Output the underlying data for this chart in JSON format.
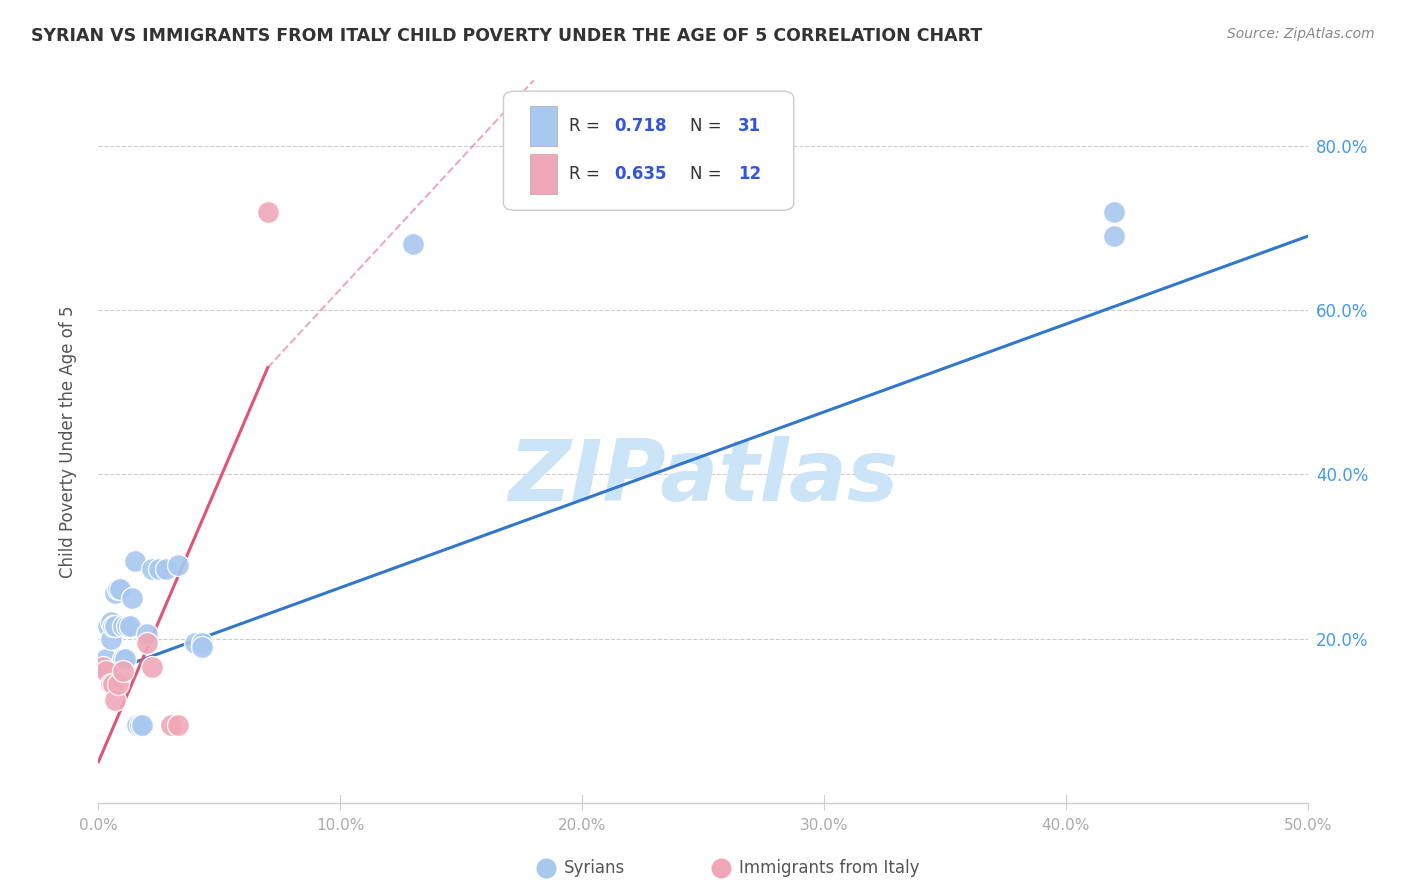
{
  "title": "SYRIAN VS IMMIGRANTS FROM ITALY CHILD POVERTY UNDER THE AGE OF 5 CORRELATION CHART",
  "source": "Source: ZipAtlas.com",
  "ylabel": "Child Poverty Under the Age of 5",
  "xlim": [
    0.0,
    0.5
  ],
  "ylim": [
    0.0,
    0.88
  ],
  "xticks": [
    0.0,
    0.1,
    0.2,
    0.3,
    0.4,
    0.5
  ],
  "yticks": [
    0.0,
    0.2,
    0.4,
    0.6,
    0.8
  ],
  "xtick_labels": [
    "0.0%",
    "10.0%",
    "20.0%",
    "30.0%",
    "40.0%",
    "50.0%"
  ],
  "ytick_labels": [
    "",
    "20.0%",
    "40.0%",
    "60.0%",
    "80.0%"
  ],
  "background_color": "#ffffff",
  "watermark": "ZIPatlas",
  "watermark_color": "#cce4f7",
  "color_syrians": "#a8c8f0",
  "color_italy": "#f0a8b8",
  "line_color_syrians": "#3377cc",
  "line_color_italy": "#e05575",
  "syrians_x": [
    0.002,
    0.003,
    0.004,
    0.005,
    0.005,
    0.006,
    0.007,
    0.007,
    0.008,
    0.009,
    0.01,
    0.01,
    0.011,
    0.012,
    0.013,
    0.014,
    0.015,
    0.016,
    0.017,
    0.018,
    0.02,
    0.022,
    0.025,
    0.028,
    0.033,
    0.04,
    0.043,
    0.043,
    0.13,
    0.42,
    0.42
  ],
  "syrians_y": [
    0.165,
    0.175,
    0.215,
    0.2,
    0.22,
    0.215,
    0.215,
    0.255,
    0.26,
    0.26,
    0.175,
    0.215,
    0.175,
    0.215,
    0.215,
    0.25,
    0.295,
    0.095,
    0.095,
    0.095,
    0.205,
    0.285,
    0.285,
    0.285,
    0.29,
    0.195,
    0.195,
    0.19,
    0.68,
    0.69,
    0.72
  ],
  "italy_x": [
    0.002,
    0.003,
    0.005,
    0.006,
    0.007,
    0.008,
    0.01,
    0.02,
    0.022,
    0.03,
    0.033,
    0.07
  ],
  "italy_y": [
    0.165,
    0.16,
    0.145,
    0.145,
    0.125,
    0.145,
    0.16,
    0.195,
    0.165,
    0.095,
    0.095,
    0.72
  ],
  "syrians_line_x0": 0.0,
  "syrians_line_x1": 0.5,
  "syrians_line_y0": 0.155,
  "syrians_line_y1": 0.69,
  "italy_line_solid_x0": 0.0,
  "italy_line_solid_x1": 0.07,
  "italy_line_y0": 0.05,
  "italy_line_y1": 0.53,
  "italy_line_dash_x0": 0.07,
  "italy_line_dash_x1": 0.18,
  "italy_line_dash_y0": 0.53,
  "italy_line_dash_y1": 0.88
}
